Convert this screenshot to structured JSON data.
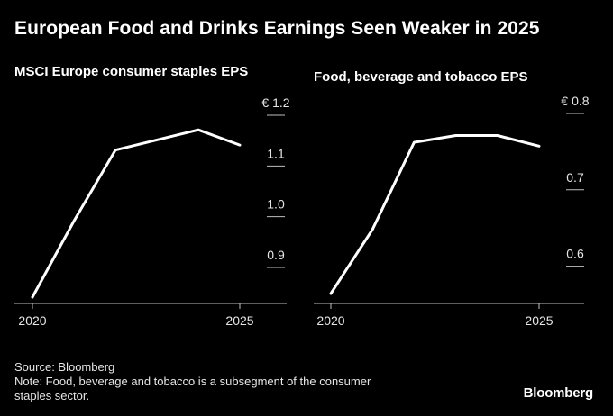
{
  "title": "European Food and Drinks Earnings Seen Weaker in 2025",
  "source": "Source: Bloomberg",
  "note_line1": "Note: Food, beverage and tobacco is a subsegment of the consumer",
  "note_line2": "staples sector.",
  "brand": "Bloomberg",
  "chart_data": [
    {
      "type": "line",
      "title": "MSCI Europe consumer staples EPS",
      "unit_prefix": "€",
      "x": [
        2020,
        2021,
        2022,
        2023,
        2024,
        2025
      ],
      "series": [
        {
          "values": [
            0.82,
            0.97,
            1.11,
            1.13,
            1.15,
            1.12
          ]
        }
      ],
      "ylim": [
        0.82,
        1.2
      ],
      "yticks": [
        1.2,
        1.1,
        1.0,
        0.9
      ],
      "ytick_labels": [
        "€ 1.2",
        "1.1",
        "1.0",
        "0.9"
      ],
      "xticks": [
        2020,
        2025
      ],
      "xtick_labels": [
        "2020",
        "2025"
      ],
      "line_color": "#ffffff"
    },
    {
      "type": "line",
      "title": "Food, beverage and tobacco EPS",
      "unit_prefix": "€",
      "x": [
        2020,
        2021,
        2022,
        2023,
        2024,
        2025
      ],
      "series": [
        {
          "values": [
            0.55,
            0.634,
            0.748,
            0.757,
            0.757,
            0.743
          ]
        }
      ],
      "ylim": [
        0.55,
        0.8
      ],
      "yticks": [
        0.8,
        0.7,
        0.6
      ],
      "ytick_labels": [
        "€ 0.8",
        "0.7",
        "0.6"
      ],
      "xticks": [
        2020,
        2025
      ],
      "xtick_labels": [
        "2020",
        "2025"
      ],
      "line_color": "#ffffff"
    }
  ]
}
